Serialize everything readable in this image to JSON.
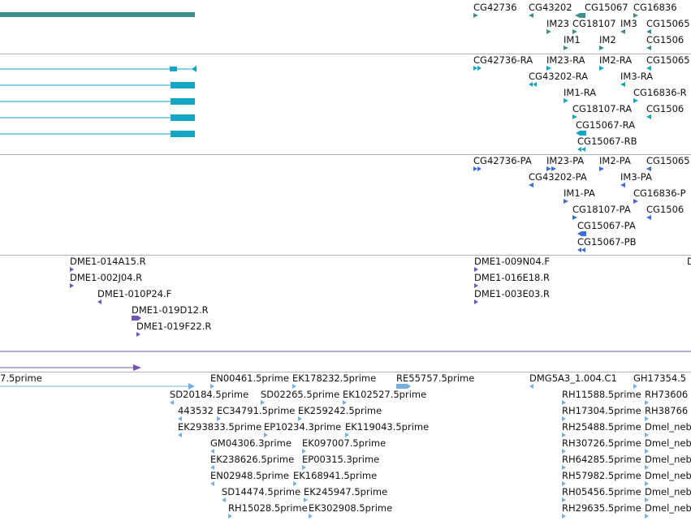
{
  "colors": {
    "gene": "#3d8f8e",
    "transcript": "#14a4c6",
    "protein": "#3b6ed6",
    "clone": "#7354b3",
    "est": "#77b0de",
    "separator": "#b5b5b5"
  },
  "tracks": {
    "genes": {
      "features": [
        {
          "label": "CG42736",
          "dir": "right"
        },
        {
          "label": "CG43202",
          "dir": "left"
        },
        {
          "label": "CG15067",
          "dir": "left"
        },
        {
          "label": "CG16836",
          "dir": "right"
        },
        {
          "label": "IM23",
          "dir": "right"
        },
        {
          "label": "CG18107",
          "dir": "right"
        },
        {
          "label": "IM3",
          "dir": "left"
        },
        {
          "label": "CG15065",
          "dir": "left"
        },
        {
          "label": "IM1",
          "dir": "right"
        },
        {
          "label": "IM2",
          "dir": "right"
        },
        {
          "label": "CG1506",
          "dir": "left"
        }
      ]
    },
    "transcripts": {
      "features": [
        {
          "label": "CG42736-RA",
          "dir": "right"
        },
        {
          "label": "IM23-RA",
          "dir": "right"
        },
        {
          "label": "IM2-RA",
          "dir": "right"
        },
        {
          "label": "CG15065",
          "dir": "left"
        },
        {
          "label": "CG43202-RA",
          "dir": "left"
        },
        {
          "label": "IM3-RA",
          "dir": "left"
        },
        {
          "label": "IM1-RA",
          "dir": "right"
        },
        {
          "label": "CG16836-R",
          "dir": "right"
        },
        {
          "label": "CG18107-RA",
          "dir": "right"
        },
        {
          "label": "CG1506",
          "dir": "left"
        },
        {
          "label": "CG15067-RA",
          "dir": "left"
        },
        {
          "label": "CG15067-RB",
          "dir": "left"
        }
      ]
    },
    "proteins": {
      "features": [
        {
          "label": "CG42736-PA",
          "dir": "right"
        },
        {
          "label": "IM23-PA",
          "dir": "right"
        },
        {
          "label": "IM2-PA",
          "dir": "right"
        },
        {
          "label": "CG15065",
          "dir": "left"
        },
        {
          "label": "CG43202-PA",
          "dir": "left"
        },
        {
          "label": "IM3-PA",
          "dir": "left"
        },
        {
          "label": "IM1-PA",
          "dir": "right"
        },
        {
          "label": "CG16836-P",
          "dir": "right"
        },
        {
          "label": "CG18107-PA",
          "dir": "right"
        },
        {
          "label": "CG1506",
          "dir": "left"
        },
        {
          "label": "CG15067-PA",
          "dir": "left"
        },
        {
          "label": "CG15067-PB",
          "dir": "left"
        }
      ]
    },
    "clones": {
      "features": [
        {
          "label": "DME1-014A15.R",
          "dir": "right"
        },
        {
          "label": "DME1-002J04.R",
          "dir": "right"
        },
        {
          "label": "DME1-010P24.F",
          "dir": "left"
        },
        {
          "label": "DME1-019D12.R",
          "dir": "right"
        },
        {
          "label": "DME1-019F22.R",
          "dir": "right"
        },
        {
          "label": "DME1-009N04.F",
          "dir": "right"
        },
        {
          "label": "DME1-016E18.R",
          "dir": "right"
        },
        {
          "label": "DME1-003E03.R",
          "dir": "right"
        },
        {
          "label": "D",
          "dir": "right"
        }
      ]
    },
    "ests": {
      "features": [
        {
          "label": "7.5prime",
          "dir": "right"
        },
        {
          "label": "EN00461.5prime",
          "dir": "right"
        },
        {
          "label": "EK178232.5prime",
          "dir": "right"
        },
        {
          "label": "RE55757.5prime",
          "dir": "right"
        },
        {
          "label": "DMG5A3_1.004.C1",
          "dir": "left"
        },
        {
          "label": "GH17354.5",
          "dir": "right"
        },
        {
          "label": "SD20184.5prime",
          "dir": "left"
        },
        {
          "label": "SD02265.5prime",
          "dir": "right"
        },
        {
          "label": "EK102527.5prime",
          "dir": "right"
        },
        {
          "label": "RH11588.5prime",
          "dir": "right"
        },
        {
          "label": "RH73606",
          "dir": "right"
        },
        {
          "label": "443532",
          "dir": "left"
        },
        {
          "label": "EC34791.5prime",
          "dir": "right"
        },
        {
          "label": "EK259242.5prime",
          "dir": "right"
        },
        {
          "label": "RH17304.5prime",
          "dir": "right"
        },
        {
          "label": "RH38766",
          "dir": "right"
        },
        {
          "label": "EK293833.5prime",
          "dir": "left"
        },
        {
          "label": "EP10234.3prime",
          "dir": "right"
        },
        {
          "label": "EK119043.5prime",
          "dir": "right"
        },
        {
          "label": "RH25488.5prime",
          "dir": "right"
        },
        {
          "label": "Dmel_neb",
          "dir": "right"
        },
        {
          "label": "GM04306.3prime",
          "dir": "left"
        },
        {
          "label": "EK097007.5prime",
          "dir": "right"
        },
        {
          "label": "RH30726.5prime",
          "dir": "right"
        },
        {
          "label": "Dmel_neb",
          "dir": "right"
        },
        {
          "label": "EK238626.5prime",
          "dir": "left"
        },
        {
          "label": "EP00315.3prime",
          "dir": "right"
        },
        {
          "label": "RH64285.5prime",
          "dir": "right"
        },
        {
          "label": "Dmel_neb",
          "dir": "right"
        },
        {
          "label": "EN02948.5prime",
          "dir": "left"
        },
        {
          "label": "EK168941.5prime",
          "dir": "right"
        },
        {
          "label": "RH57982.5prime",
          "dir": "right"
        },
        {
          "label": "Dmel_neb",
          "dir": "right"
        },
        {
          "label": "SD14474.5prime",
          "dir": "left"
        },
        {
          "label": "EK245947.5prime",
          "dir": "right"
        },
        {
          "label": "RH05456.5prime",
          "dir": "right"
        },
        {
          "label": "Dmel_neb",
          "dir": "right"
        },
        {
          "label": "RH15028.5prime",
          "dir": "right"
        },
        {
          "label": "EK302908.5prime",
          "dir": "right"
        },
        {
          "label": "RH29635.5prime",
          "dir": "right"
        },
        {
          "label": "Dmel_neb",
          "dir": "right"
        }
      ]
    }
  }
}
